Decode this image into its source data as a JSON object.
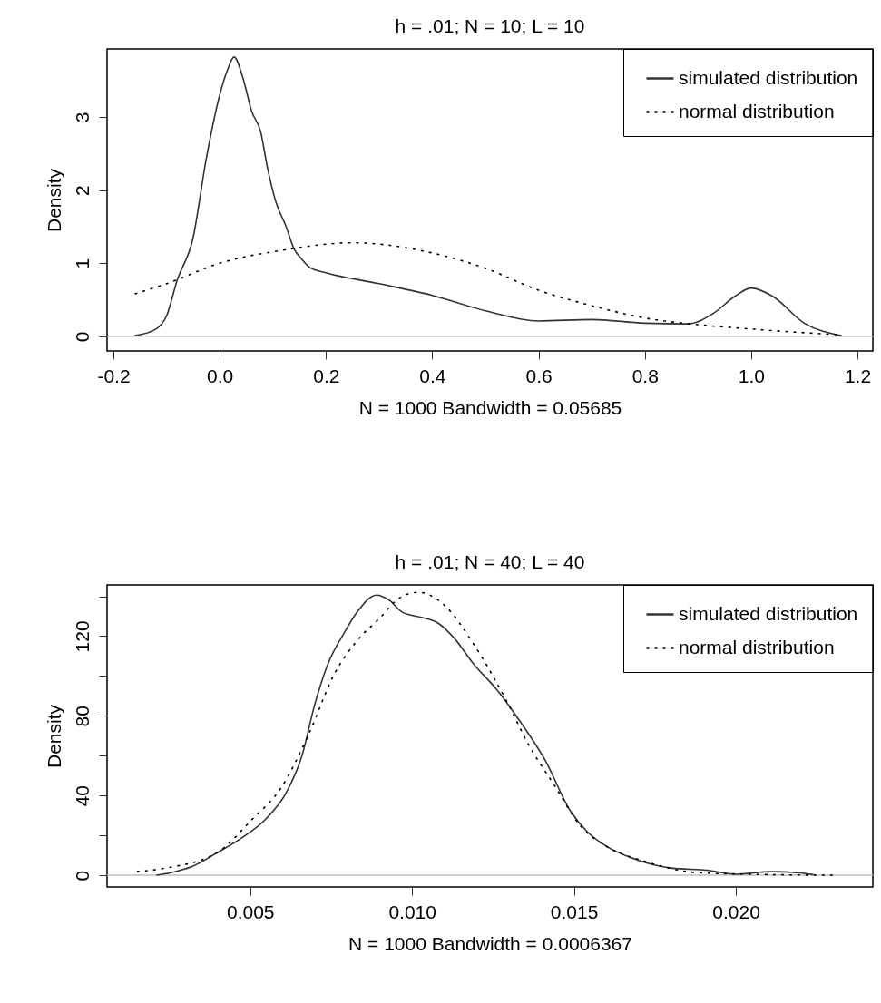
{
  "chart_data": [
    {
      "type": "line",
      "title": "h = .01; N = 10; L = 10",
      "xlabel": "N = 1000   Bandwidth = 0.05685",
      "ylabel": "Density",
      "series": [
        {
          "name": "simulated distribution",
          "color": "#333333",
          "line_style": "solid",
          "x": [
            -0.16,
            -0.12,
            -0.1,
            -0.08,
            -0.05,
            -0.026,
            0.0,
            0.015,
            0.027,
            0.045,
            0.06,
            0.077,
            0.09,
            0.106,
            0.125,
            0.139,
            0.155,
            0.17,
            0.2,
            0.3,
            0.4,
            0.5,
            0.6,
            0.7,
            0.8,
            0.88,
            0.93,
            0.97,
            1.0,
            1.04,
            1.1,
            1.17
          ],
          "values": [
            0.01,
            0.1,
            0.28,
            0.77,
            1.35,
            2.4,
            3.3,
            3.65,
            3.82,
            3.5,
            3.08,
            2.8,
            2.3,
            1.83,
            1.5,
            1.21,
            1.05,
            0.94,
            0.87,
            0.72,
            0.56,
            0.35,
            0.21,
            0.23,
            0.18,
            0.17,
            0.32,
            0.55,
            0.66,
            0.55,
            0.18,
            0.01
          ]
        },
        {
          "name": "normal distribution",
          "color": "#000000",
          "line_style": "dotted",
          "x": [
            -0.16,
            -0.1,
            0.0,
            0.12,
            0.25,
            0.4,
            0.5,
            0.6,
            0.7,
            0.8,
            0.9,
            1.0,
            1.1,
            1.17
          ],
          "values": [
            0.58,
            0.72,
            1.0,
            1.18,
            1.28,
            1.14,
            0.93,
            0.63,
            0.42,
            0.25,
            0.16,
            0.1,
            0.05,
            0.02
          ]
        }
      ],
      "xlim": [
        -0.212,
        1.229
      ],
      "ylim": [
        -0.2,
        3.93
      ],
      "xticks": [
        -0.2,
        {
          "value": 0,
          "label": "0.0"
        },
        0.2,
        0.4,
        0.6,
        0.8,
        {
          "value": 1,
          "label": "1.0"
        },
        1.2
      ],
      "yticks": [
        0,
        1,
        2,
        3
      ],
      "ref_lines": [
        {
          "axis": "y",
          "value": 0,
          "color": "#bebebe"
        }
      ],
      "legend": "top right",
      "grid": false
    },
    {
      "type": "line",
      "title": "h = .01; N = 40; L = 40",
      "xlabel": "N = 1000   Bandwidth = 0.0006367",
      "ylabel": "Density",
      "series": [
        {
          "name": "simulated distribution",
          "color": "#333333",
          "line_style": "solid",
          "x": [
            0.0021,
            0.00255,
            0.0032,
            0.004,
            0.0047,
            0.0055,
            0.0061,
            0.0066,
            0.007,
            0.0074,
            0.0079,
            0.0083,
            0.0089,
            0.0093,
            0.0097,
            0.0104,
            0.0108,
            0.0113,
            0.0119,
            0.0126,
            0.0133,
            0.0141,
            0.0149,
            0.0154,
            0.016,
            0.0169,
            0.018,
            0.0191,
            0.02,
            0.0211,
            0.0219,
            0.0224
          ],
          "values": [
            0,
            1.3,
            4.3,
            11.5,
            18.3,
            28.5,
            41,
            60,
            86,
            106,
            121.5,
            132,
            140.6,
            138,
            132,
            129,
            126.6,
            119,
            106,
            93.5,
            78,
            58,
            32,
            22,
            14.5,
            8,
            3.6,
            2.5,
            0.5,
            1.8,
            1.3,
            0.3
          ]
        },
        {
          "name": "normal distribution",
          "color": "#000000",
          "line_style": "dotted",
          "x": [
            0.0015,
            0.0024,
            0.004,
            0.005,
            0.006,
            0.0068,
            0.0076,
            0.0083,
            0.009,
            0.0096,
            0.0102,
            0.011,
            0.0119,
            0.0129,
            0.0136,
            0.0144,
            0.0152,
            0.016,
            0.0172,
            0.0188,
            0.0204,
            0.023
          ],
          "values": [
            1.8,
            3.6,
            11.5,
            27,
            45,
            70.5,
            101,
            117.7,
            129,
            139,
            142,
            135.5,
            116,
            88,
            65.5,
            45,
            24.7,
            14.5,
            6.9,
            1.3,
            0.5,
            0
          ]
        }
      ],
      "xlim": [
        0.00058,
        0.02423
      ],
      "ylim": [
        -5.9,
        145.7
      ],
      "xticks": [
        0.005,
        {
          "value": 0.01,
          "label": "0.010"
        },
        0.015,
        {
          "value": 0.02,
          "label": "0.020"
        }
      ],
      "yticks": [
        0,
        {
          "value": 20,
          "label": null
        },
        40,
        {
          "value": 60,
          "label": null
        },
        80,
        {
          "value": 100,
          "label": null
        },
        120,
        {
          "value": 140,
          "label": null
        }
      ],
      "ref_lines": [
        {
          "axis": "y",
          "value": 0,
          "color": "#bebebe"
        }
      ],
      "legend": "top right",
      "grid": false
    }
  ]
}
